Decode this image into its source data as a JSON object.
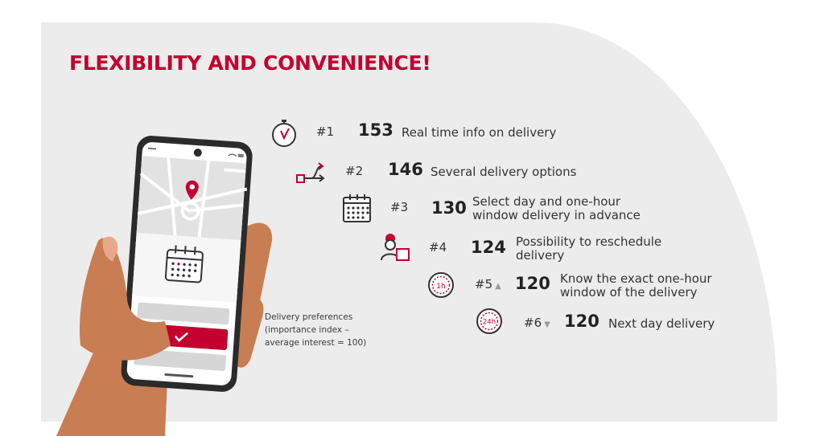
{
  "title": "FLEXIBILITY AND CONVENIENCE!",
  "note": "Delivery preferences\n(importance index –\naverage interest = 100)",
  "colors": {
    "accent": "#c3002f",
    "panel": "#ececec",
    "text": "#222222"
  },
  "phone": {
    "screen_icons": [
      "map-pin-icon",
      "calendar-icon",
      "check-icon"
    ]
  },
  "preferences": [
    {
      "rank": "#1",
      "trend": "",
      "score": "153",
      "label": "Real time info on delivery",
      "icon": "stopwatch-icon"
    },
    {
      "rank": "#2",
      "trend": "",
      "score": "146",
      "label": "Several delivery options",
      "icon": "route-options-icon"
    },
    {
      "rank": "#3",
      "trend": "",
      "score": "130",
      "label": "Select day and one-hour\nwindow delivery in advance",
      "icon": "calendar-icon"
    },
    {
      "rank": "#4",
      "trend": "",
      "score": "124",
      "label": "Possibility to reschedule\ndelivery",
      "icon": "courier-reschedule-icon"
    },
    {
      "rank": "#5",
      "trend": "▲",
      "score": "120",
      "label": "Know the exact one-hour\nwindow of the delivery",
      "icon": "one-hour-icon",
      "icon_text": "1h"
    },
    {
      "rank": "#6",
      "trend": "▼",
      "score": "120",
      "label": "Next day delivery",
      "icon": "24h-icon",
      "icon_text": "24h"
    }
  ]
}
